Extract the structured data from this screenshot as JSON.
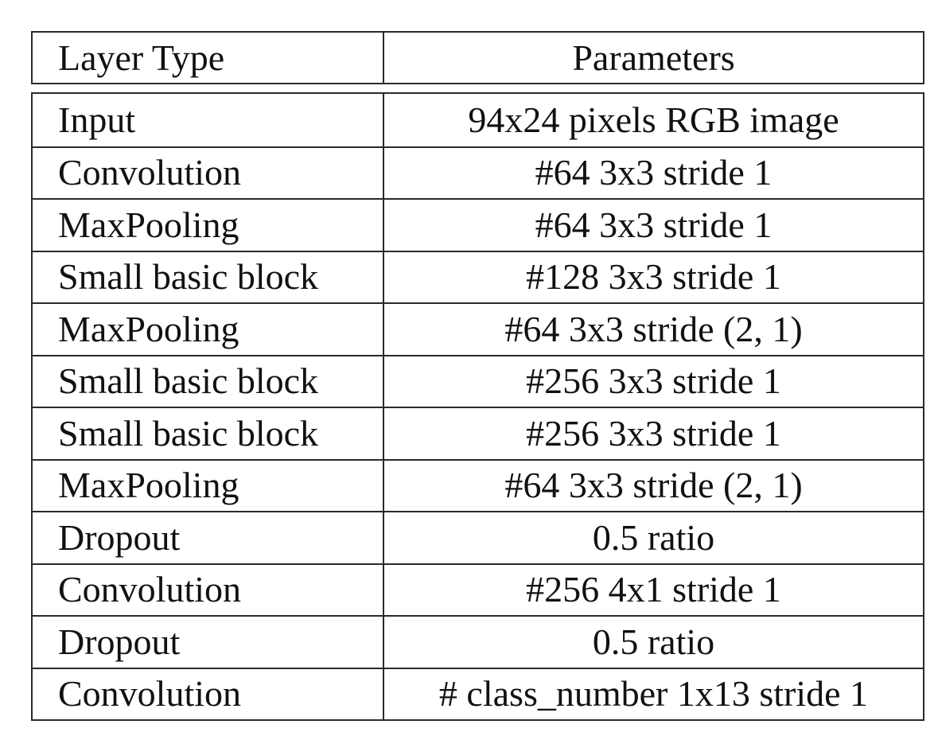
{
  "table": {
    "headers": {
      "layer_type": "Layer Type",
      "parameters": "Parameters"
    },
    "rows": [
      {
        "layer_type": "Input",
        "parameters": "94x24 pixels RGB image"
      },
      {
        "layer_type": "Convolution",
        "parameters": "#64 3x3 stride 1"
      },
      {
        "layer_type": "MaxPooling",
        "parameters": "#64 3x3 stride 1"
      },
      {
        "layer_type": "Small basic block",
        "parameters": "#128 3x3 stride 1"
      },
      {
        "layer_type": "MaxPooling",
        "parameters": "#64 3x3 stride (2, 1)"
      },
      {
        "layer_type": "Small basic block",
        "parameters": "#256 3x3 stride 1"
      },
      {
        "layer_type": "Small basic block",
        "parameters": "#256 3x3 stride 1"
      },
      {
        "layer_type": "MaxPooling",
        "parameters": "#64 3x3 stride (2, 1)"
      },
      {
        "layer_type": "Dropout",
        "parameters": "0.5 ratio"
      },
      {
        "layer_type": "Convolution",
        "parameters": "#256 4x1 stride 1"
      },
      {
        "layer_type": "Dropout",
        "parameters": "0.5 ratio"
      },
      {
        "layer_type": "Convolution",
        "parameters": "# class_number 1x13 stride 1"
      }
    ]
  }
}
